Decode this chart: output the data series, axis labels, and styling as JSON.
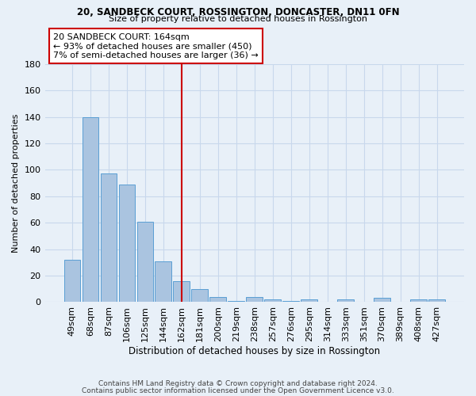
{
  "title1": "20, SANDBECK COURT, ROSSINGTON, DONCASTER, DN11 0FN",
  "title2": "Size of property relative to detached houses in Rossington",
  "xlabel": "Distribution of detached houses by size in Rossington",
  "ylabel": "Number of detached properties",
  "bar_labels": [
    "49sqm",
    "68sqm",
    "87sqm",
    "106sqm",
    "125sqm",
    "144sqm",
    "162sqm",
    "181sqm",
    "200sqm",
    "219sqm",
    "238sqm",
    "257sqm",
    "276sqm",
    "295sqm",
    "314sqm",
    "333sqm",
    "351sqm",
    "370sqm",
    "389sqm",
    "408sqm",
    "427sqm"
  ],
  "bar_values": [
    32,
    140,
    97,
    89,
    61,
    31,
    16,
    10,
    4,
    1,
    4,
    2,
    1,
    2,
    0,
    2,
    0,
    3,
    0,
    2,
    2
  ],
  "bar_color": "#aac4e0",
  "bar_edge_color": "#5a9fd4",
  "vline_x": 6,
  "vline_color": "#cc0000",
  "annotation_title": "20 SANDBECK COURT: 164sqm",
  "annotation_line1": "← 93% of detached houses are smaller (450)",
  "annotation_line2": "7% of semi-detached houses are larger (36) →",
  "annotation_box_color": "#cc0000",
  "background_color": "#e8f0f8",
  "grid_color": "#c8d8ec",
  "ylim": [
    0,
    180
  ],
  "yticks": [
    0,
    20,
    40,
    60,
    80,
    100,
    120,
    140,
    160,
    180
  ],
  "footer1": "Contains HM Land Registry data © Crown copyright and database right 2024.",
  "footer2": "Contains public sector information licensed under the Open Government Licence v3.0."
}
